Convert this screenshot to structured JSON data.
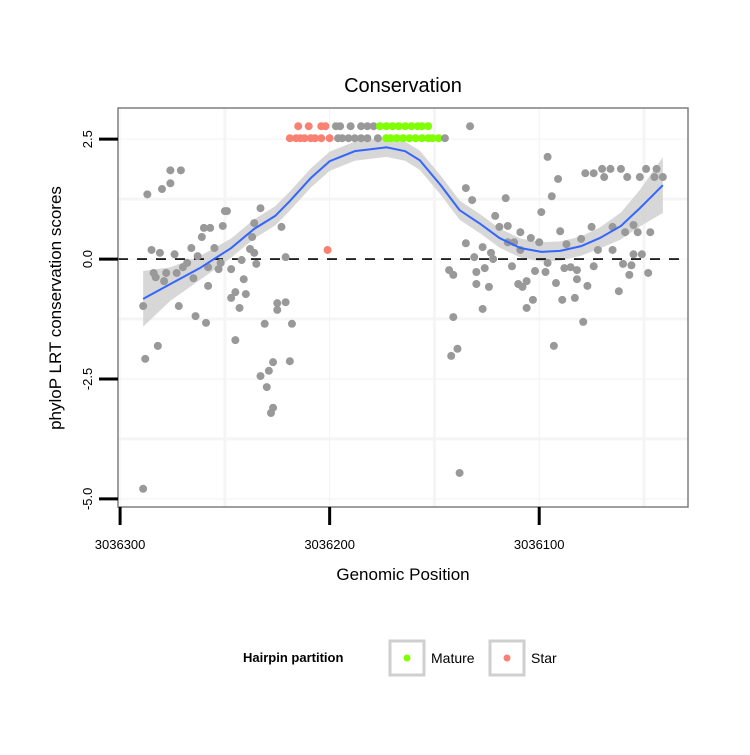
{
  "chart_data": {
    "type": "scatter",
    "title": "Conservation",
    "xlabel": "Genomic Position",
    "ylabel": "phyloP LRT conservation scores",
    "x_reversed": true,
    "xlim": [
      3036301,
      3036029
    ],
    "ylim": [
      -5.17,
      3.15
    ],
    "x_ticks": [
      3036300,
      3036200,
      3036100
    ],
    "x_tick_labels": [
      "3036300",
      "3036200",
      "3036100"
    ],
    "y_ticks": [
      2.5,
      0.0,
      -2.5,
      -5.0
    ],
    "y_tick_labels": [
      "2.5",
      "0.0",
      "-2.5",
      "-5.0"
    ],
    "x_minor_grid": [
      3036250,
      3036150,
      3036050
    ],
    "y_minor_grid": [
      1.25,
      -1.25,
      -3.75
    ],
    "reference_line": {
      "y": 0,
      "style": "dashed"
    },
    "colors": {
      "none": "#999999",
      "Mature": "#7FFF00",
      "Star": "#FA8072",
      "smooth": "#3366FF",
      "band": "#D3D3D3"
    },
    "legend": {
      "title": "Hairpin partition",
      "placement": "bottom",
      "entries": [
        "Mature",
        "Star"
      ]
    },
    "points": [
      [
        3036287,
        1.35,
        "none"
      ],
      [
        3036280,
        1.46,
        "none"
      ],
      [
        3036276,
        1.58,
        "none"
      ],
      [
        3036276,
        1.85,
        "none"
      ],
      [
        3036271,
        1.85,
        "none"
      ],
      [
        3036285,
        0.19,
        "none"
      ],
      [
        3036281,
        0.13,
        "none"
      ],
      [
        3036274,
        0.1,
        "none"
      ],
      [
        3036284,
        -0.29,
        "none"
      ],
      [
        3036283,
        -0.38,
        "none"
      ],
      [
        3036278,
        -0.29,
        "none"
      ],
      [
        3036279,
        -0.46,
        "none"
      ],
      [
        3036273,
        -0.29,
        "none"
      ],
      [
        3036270,
        -0.17,
        "none"
      ],
      [
        3036268,
        -0.08,
        "none"
      ],
      [
        3036266,
        0.23,
        "none"
      ],
      [
        3036265,
        -0.4,
        "none"
      ],
      [
        3036263,
        0.06,
        "none"
      ],
      [
        3036260,
        0.65,
        "none"
      ],
      [
        3036261,
        0.46,
        "none"
      ],
      [
        3036257,
        0.65,
        "none"
      ],
      [
        3036258,
        -0.17,
        "none"
      ],
      [
        3036255,
        0.23,
        "none"
      ],
      [
        3036253,
        -0.21,
        "none"
      ],
      [
        3036252,
        -0.08,
        "none"
      ],
      [
        3036251,
        0.69,
        "none"
      ],
      [
        3036250,
        1.0,
        "none"
      ],
      [
        3036249,
        1.0,
        "none"
      ],
      [
        3036258,
        -0.56,
        "none"
      ],
      [
        3036247,
        -0.21,
        "none"
      ],
      [
        3036242,
        -0.02,
        "none"
      ],
      [
        3036241,
        -0.42,
        "none"
      ],
      [
        3036238,
        0.21,
        "none"
      ],
      [
        3036236,
        0.13,
        "none"
      ],
      [
        3036235,
        -0.1,
        "none"
      ],
      [
        3036237,
        0.46,
        "none"
      ],
      [
        3036236,
        0.75,
        "none"
      ],
      [
        3036233,
        1.06,
        "none"
      ],
      [
        3036223,
        0.67,
        "none"
      ],
      [
        3036221,
        0.04,
        "none"
      ],
      [
        3036289,
        -0.98,
        "none"
      ],
      [
        3036272,
        -0.98,
        "none"
      ],
      [
        3036264,
        -1.19,
        "none"
      ],
      [
        3036259,
        -1.33,
        "none"
      ],
      [
        3036247,
        -0.81,
        "none"
      ],
      [
        3036245,
        -0.69,
        "none"
      ],
      [
        3036240,
        -0.73,
        "none"
      ],
      [
        3036243,
        -1.02,
        "none"
      ],
      [
        3036245,
        -1.69,
        "none"
      ],
      [
        3036231,
        -1.35,
        "none"
      ],
      [
        3036225,
        -0.92,
        "none"
      ],
      [
        3036221,
        -0.9,
        "none"
      ],
      [
        3036225,
        -1.06,
        "none"
      ],
      [
        3036218,
        -1.35,
        "none"
      ],
      [
        3036282,
        -1.81,
        "none"
      ],
      [
        3036288,
        -2.08,
        "none"
      ],
      [
        3036227,
        -2.15,
        "none"
      ],
      [
        3036229,
        -2.33,
        "none"
      ],
      [
        3036233,
        -2.44,
        "none"
      ],
      [
        3036230,
        -2.67,
        "none"
      ],
      [
        3036219,
        -2.13,
        "none"
      ],
      [
        3036227,
        -3.1,
        "none"
      ],
      [
        3036228,
        -3.21,
        "none"
      ],
      [
        3036289,
        -4.79,
        "none"
      ],
      [
        3036215,
        2.77,
        "Star"
      ],
      [
        3036210,
        2.77,
        "Star"
      ],
      [
        3036204,
        2.77,
        "Star"
      ],
      [
        3036202,
        2.77,
        "Star"
      ],
      [
        3036197,
        2.77,
        "none"
      ],
      [
        3036195,
        2.77,
        "none"
      ],
      [
        3036190,
        2.77,
        "none"
      ],
      [
        3036185,
        2.77,
        "none"
      ],
      [
        3036182,
        2.77,
        "none"
      ],
      [
        3036179,
        2.77,
        "none"
      ],
      [
        3036176,
        2.77,
        "Mature"
      ],
      [
        3036173,
        2.77,
        "Mature"
      ],
      [
        3036170,
        2.77,
        "Mature"
      ],
      [
        3036167,
        2.77,
        "Mature"
      ],
      [
        3036164,
        2.77,
        "Mature"
      ],
      [
        3036161,
        2.77,
        "Mature"
      ],
      [
        3036158,
        2.77,
        "Mature"
      ],
      [
        3036156,
        2.77,
        "Mature"
      ],
      [
        3036153,
        2.77,
        "Mature"
      ],
      [
        3036219,
        2.52,
        "Star"
      ],
      [
        3036216,
        2.52,
        "Star"
      ],
      [
        3036214,
        2.52,
        "Star"
      ],
      [
        3036212,
        2.52,
        "Star"
      ],
      [
        3036209,
        2.52,
        "Star"
      ],
      [
        3036207,
        2.52,
        "Star"
      ],
      [
        3036204,
        2.52,
        "Star"
      ],
      [
        3036200,
        2.52,
        "Star"
      ],
      [
        3036196,
        2.52,
        "none"
      ],
      [
        3036194,
        2.52,
        "none"
      ],
      [
        3036191,
        2.52,
        "none"
      ],
      [
        3036188,
        2.52,
        "none"
      ],
      [
        3036185,
        2.52,
        "none"
      ],
      [
        3036182,
        2.52,
        "none"
      ],
      [
        3036177,
        2.52,
        "none"
      ],
      [
        3036173,
        2.52,
        "Mature"
      ],
      [
        3036171,
        2.52,
        "Mature"
      ],
      [
        3036168,
        2.52,
        "Mature"
      ],
      [
        3036165,
        2.52,
        "Mature"
      ],
      [
        3036162,
        2.52,
        "Mature"
      ],
      [
        3036159,
        2.52,
        "Mature"
      ],
      [
        3036156,
        2.52,
        "Mature"
      ],
      [
        3036153,
        2.52,
        "Mature"
      ],
      [
        3036151,
        2.52,
        "Mature"
      ],
      [
        3036148,
        2.52,
        "Mature"
      ],
      [
        3036145,
        2.52,
        "none"
      ],
      [
        3036133,
        2.77,
        "none"
      ],
      [
        3036201,
        0.19,
        "Star"
      ],
      [
        3036135,
        1.48,
        "none"
      ],
      [
        3036132,
        1.23,
        "none"
      ],
      [
        3036135,
        0.33,
        "none"
      ],
      [
        3036143,
        -0.23,
        "none"
      ],
      [
        3036141,
        -0.33,
        "none"
      ],
      [
        3036131,
        0.04,
        "none"
      ],
      [
        3036130,
        -0.27,
        "none"
      ],
      [
        3036130,
        -0.52,
        "none"
      ],
      [
        3036141,
        -1.21,
        "none"
      ],
      [
        3036139,
        -1.87,
        "none"
      ],
      [
        3036142,
        -2.02,
        "none"
      ],
      [
        3036138,
        -4.46,
        "none"
      ],
      [
        3036096,
        2.13,
        "none"
      ],
      [
        3036091,
        1.67,
        "none"
      ],
      [
        3036094,
        1.31,
        "none"
      ],
      [
        3036099,
        0.98,
        "none"
      ],
      [
        3036116,
        1.27,
        "none"
      ],
      [
        3036121,
        0.9,
        "none"
      ],
      [
        3036119,
        0.67,
        "none"
      ],
      [
        3036115,
        0.69,
        "none"
      ],
      [
        3036109,
        0.56,
        "none"
      ],
      [
        3036104,
        0.44,
        "none"
      ],
      [
        3036100,
        0.35,
        "none"
      ],
      [
        3036090,
        0.58,
        "none"
      ],
      [
        3036087,
        0.31,
        "none"
      ],
      [
        3036080,
        0.42,
        "none"
      ],
      [
        3036075,
        0.67,
        "none"
      ],
      [
        3036072,
        0.19,
        "none"
      ],
      [
        3036065,
        0.67,
        "none"
      ],
      [
        3036059,
        0.56,
        "none"
      ],
      [
        3036055,
        0.71,
        "none"
      ],
      [
        3036053,
        0.56,
        "none"
      ],
      [
        3036047,
        0.56,
        "none"
      ],
      [
        3036065,
        0.19,
        "none"
      ],
      [
        3036055,
        0.1,
        "none"
      ],
      [
        3036051,
        0.1,
        "none"
      ],
      [
        3036060,
        -0.1,
        "none"
      ],
      [
        3036056,
        -0.13,
        "none"
      ],
      [
        3036127,
        0.25,
        "none"
      ],
      [
        3036123,
        0.13,
        "none"
      ],
      [
        3036122,
        0.0,
        "none"
      ],
      [
        3036126,
        -0.19,
        "none"
      ],
      [
        3036113,
        -0.15,
        "none"
      ],
      [
        3036102,
        -0.25,
        "none"
      ],
      [
        3036097,
        -0.27,
        "none"
      ],
      [
        3036096,
        -0.08,
        "none"
      ],
      [
        3036088,
        -0.19,
        "none"
      ],
      [
        3036085,
        -0.17,
        "none"
      ],
      [
        3036082,
        -0.23,
        "none"
      ],
      [
        3036074,
        -0.15,
        "none"
      ],
      [
        3036124,
        -0.58,
        "none"
      ],
      [
        3036110,
        -0.52,
        "none"
      ],
      [
        3036108,
        -0.58,
        "none"
      ],
      [
        3036106,
        -0.46,
        "none"
      ],
      [
        3036092,
        -0.5,
        "none"
      ],
      [
        3036082,
        -0.42,
        "none"
      ],
      [
        3036077,
        -0.56,
        "none"
      ],
      [
        3036057,
        -0.33,
        "none"
      ],
      [
        3036048,
        -0.29,
        "none"
      ],
      [
        3036127,
        -1.04,
        "none"
      ],
      [
        3036103,
        -0.85,
        "none"
      ],
      [
        3036106,
        -1.02,
        "none"
      ],
      [
        3036089,
        -0.85,
        "none"
      ],
      [
        3036083,
        -0.81,
        "none"
      ],
      [
        3036062,
        -0.67,
        "none"
      ],
      [
        3036079,
        -1.31,
        "none"
      ],
      [
        3036093,
        -1.81,
        "none"
      ],
      [
        3036078,
        1.79,
        "none"
      ],
      [
        3036074,
        1.79,
        "none"
      ],
      [
        3036070,
        1.88,
        "none"
      ],
      [
        3036066,
        1.88,
        "none"
      ],
      [
        3036061,
        1.88,
        "none"
      ],
      [
        3036058,
        1.71,
        "none"
      ],
      [
        3036069,
        1.71,
        "none"
      ],
      [
        3036052,
        1.71,
        "none"
      ],
      [
        3036049,
        1.88,
        "none"
      ],
      [
        3036044,
        1.88,
        "none"
      ],
      [
        3036041,
        1.71,
        "none"
      ],
      [
        3036045,
        1.71,
        "none"
      ],
      [
        3036115,
        0.35,
        "none"
      ],
      [
        3036112,
        0.35,
        "none"
      ],
      [
        3036109,
        0.19,
        "none"
      ]
    ],
    "smooth": [
      [
        3036289,
        -0.83,
        0.58
      ],
      [
        3036276,
        -0.52,
        0.35
      ],
      [
        3036262,
        -0.19,
        0.25
      ],
      [
        3036247,
        0.23,
        0.2
      ],
      [
        3036236,
        0.63,
        0.2
      ],
      [
        3036226,
        0.9,
        0.2
      ],
      [
        3036219,
        1.21,
        0.2
      ],
      [
        3036209,
        1.69,
        0.2
      ],
      [
        3036200,
        2.04,
        0.2
      ],
      [
        3036188,
        2.25,
        0.2
      ],
      [
        3036173,
        2.33,
        0.2
      ],
      [
        3036164,
        2.25,
        0.2
      ],
      [
        3036157,
        2.06,
        0.2
      ],
      [
        3036147,
        1.54,
        0.2
      ],
      [
        3036138,
        1.02,
        0.2
      ],
      [
        3036128,
        0.73,
        0.2
      ],
      [
        3036119,
        0.44,
        0.2
      ],
      [
        3036109,
        0.23,
        0.2
      ],
      [
        3036099,
        0.15,
        0.2
      ],
      [
        3036090,
        0.17,
        0.2
      ],
      [
        3036080,
        0.27,
        0.2
      ],
      [
        3036071,
        0.44,
        0.22
      ],
      [
        3036061,
        0.69,
        0.28
      ],
      [
        3036052,
        1.06,
        0.38
      ],
      [
        3036041,
        1.54,
        0.58
      ]
    ]
  }
}
